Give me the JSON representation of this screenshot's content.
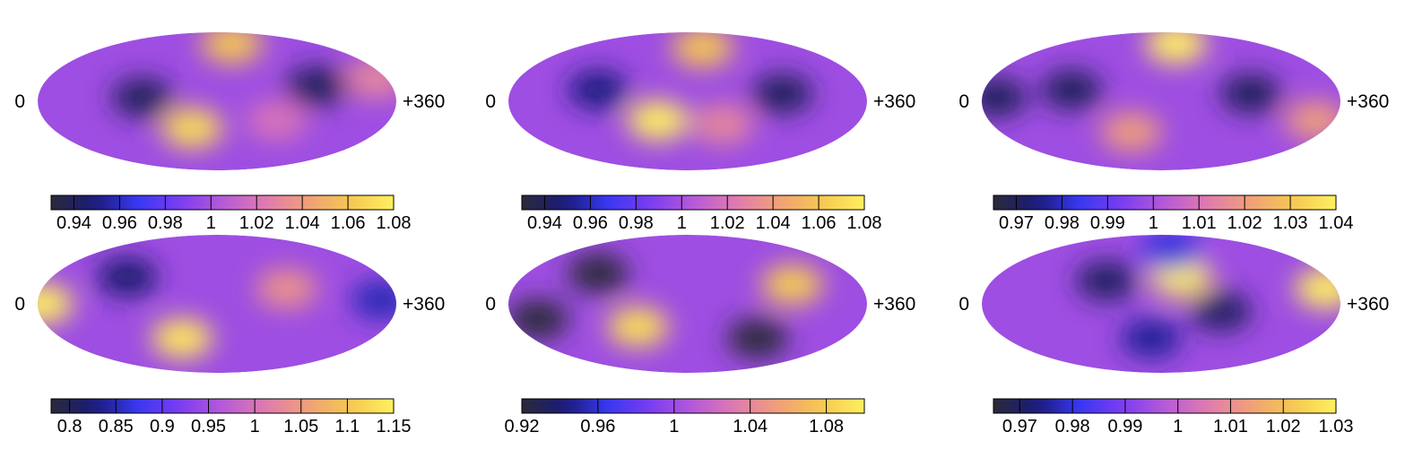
{
  "palette": [
    "#2a2a3a",
    "#1a1a78",
    "#3838f0",
    "#7a3cf2",
    "#b65ad8",
    "#e07bb0",
    "#f0a078",
    "#f5c850",
    "#fff060"
  ],
  "chart_data": [
    {
      "type": "heatmap",
      "projection": "mollweide",
      "lon_labels": {
        "left": "0",
        "right": "+360"
      },
      "colorbar": {
        "range": [
          0.93,
          1.08
        ],
        "ticks": [
          0.94,
          0.96,
          0.98,
          1,
          1.02,
          1.04,
          1.06,
          1.08
        ],
        "tick_labels": [
          "0.94",
          "0.96",
          "0.98",
          "1",
          "1.02",
          "1.04",
          "1.06",
          "1.08"
        ]
      },
      "features": [
        {
          "lon": 105,
          "lat": 5,
          "value": 0.94
        },
        {
          "lon": 280,
          "lat": 20,
          "value": 0.94
        },
        {
          "lon": 155,
          "lat": -35,
          "value": 1.07
        },
        {
          "lon": 195,
          "lat": 75,
          "value": 1.06
        },
        {
          "lon": 340,
          "lat": 30,
          "value": 1.03
        },
        {
          "lon": 240,
          "lat": -25,
          "value": 1.02
        }
      ]
    },
    {
      "type": "heatmap",
      "projection": "mollweide",
      "lon_labels": {
        "left": "0",
        "right": "+360"
      },
      "colorbar": {
        "range": [
          0.93,
          1.08
        ],
        "ticks": [
          0.94,
          0.96,
          0.98,
          1,
          1.02,
          1.04,
          1.06,
          1.08
        ],
        "tick_labels": [
          "0.94",
          "0.96",
          "0.98",
          "1",
          "1.02",
          "1.04",
          "1.06",
          "1.08"
        ]
      },
      "features": [
        {
          "lon": 90,
          "lat": 15,
          "value": 0.95
        },
        {
          "lon": 275,
          "lat": 10,
          "value": 0.94
        },
        {
          "lon": 150,
          "lat": -25,
          "value": 1.08
        },
        {
          "lon": 195,
          "lat": 70,
          "value": 1.06
        },
        {
          "lon": 215,
          "lat": -30,
          "value": 1.03
        }
      ]
    },
    {
      "type": "heatmap",
      "projection": "mollweide",
      "lon_labels": {
        "left": "0",
        "right": "+360"
      },
      "colorbar": {
        "range": [
          0.965,
          1.04
        ],
        "ticks": [
          0.97,
          0.98,
          0.99,
          1,
          1.01,
          1.02,
          1.03,
          1.04
        ],
        "tick_labels": [
          "0.97",
          "0.98",
          "0.99",
          "1",
          "1.01",
          "1.02",
          "1.03",
          "1.04"
        ]
      },
      "features": [
        {
          "lon": 15,
          "lat": 5,
          "value": 0.97
        },
        {
          "lon": 90,
          "lat": 15,
          "value": 0.97
        },
        {
          "lon": 270,
          "lat": 10,
          "value": 0.97
        },
        {
          "lon": 195,
          "lat": 75,
          "value": 1.04
        },
        {
          "lon": 150,
          "lat": -40,
          "value": 1.02
        },
        {
          "lon": 335,
          "lat": -25,
          "value": 1.02
        }
      ]
    },
    {
      "type": "heatmap",
      "projection": "mollweide",
      "lon_labels": {
        "left": "0",
        "right": "+360"
      },
      "colorbar": {
        "range": [
          0.78,
          1.15
        ],
        "ticks": [
          0.8,
          0.85,
          0.9,
          0.95,
          1,
          1.05,
          1.1,
          1.15
        ],
        "tick_labels": [
          "0.8",
          "0.85",
          "0.9",
          "0.95",
          "1",
          "1.05",
          "1.1",
          "1.15"
        ]
      },
      "features": [
        {
          "lon": 90,
          "lat": 35,
          "value": 0.82
        },
        {
          "lon": 345,
          "lat": 5,
          "value": 0.85
        },
        {
          "lon": 5,
          "lat": 0,
          "value": 1.15
        },
        {
          "lon": 145,
          "lat": -45,
          "value": 1.14
        },
        {
          "lon": 250,
          "lat": 20,
          "value": 1.04
        }
      ]
    },
    {
      "type": "heatmap",
      "projection": "mollweide",
      "lon_labels": {
        "left": "0",
        "right": "+360"
      },
      "colorbar": {
        "range": [
          0.92,
          1.1
        ],
        "ticks": [
          0.92,
          0.96,
          1,
          1.04,
          1.08
        ],
        "tick_labels": [
          "0.92",
          "0.96",
          "1",
          "1.04",
          "1.08"
        ]
      },
      "features": [
        {
          "lon": 90,
          "lat": 40,
          "value": 0.92
        },
        {
          "lon": 30,
          "lat": -20,
          "value": 0.92
        },
        {
          "lon": 250,
          "lat": -45,
          "value": 0.92
        },
        {
          "lon": 130,
          "lat": -30,
          "value": 1.09
        },
        {
          "lon": 285,
          "lat": 25,
          "value": 1.08
        }
      ]
    },
    {
      "type": "heatmap",
      "projection": "mollweide",
      "lon_labels": {
        "left": "0",
        "right": "+360"
      },
      "colorbar": {
        "range": [
          0.965,
          1.03
        ],
        "ticks": [
          0.97,
          0.98,
          0.99,
          1,
          1.01,
          1.02,
          1.03
        ],
        "tick_labels": [
          "0.97",
          "0.98",
          "0.99",
          "1",
          "1.01",
          "1.02",
          "1.03"
        ]
      },
      "features": [
        {
          "lon": 125,
          "lat": 30,
          "value": 0.97
        },
        {
          "lon": 240,
          "lat": -10,
          "value": 0.97
        },
        {
          "lon": 170,
          "lat": -45,
          "value": 0.975
        },
        {
          "lon": 200,
          "lat": 35,
          "value": 1.03
        },
        {
          "lon": 345,
          "lat": 20,
          "value": 1.03
        },
        {
          "lon": 190,
          "lat": 70,
          "value": 0.98
        }
      ]
    }
  ]
}
